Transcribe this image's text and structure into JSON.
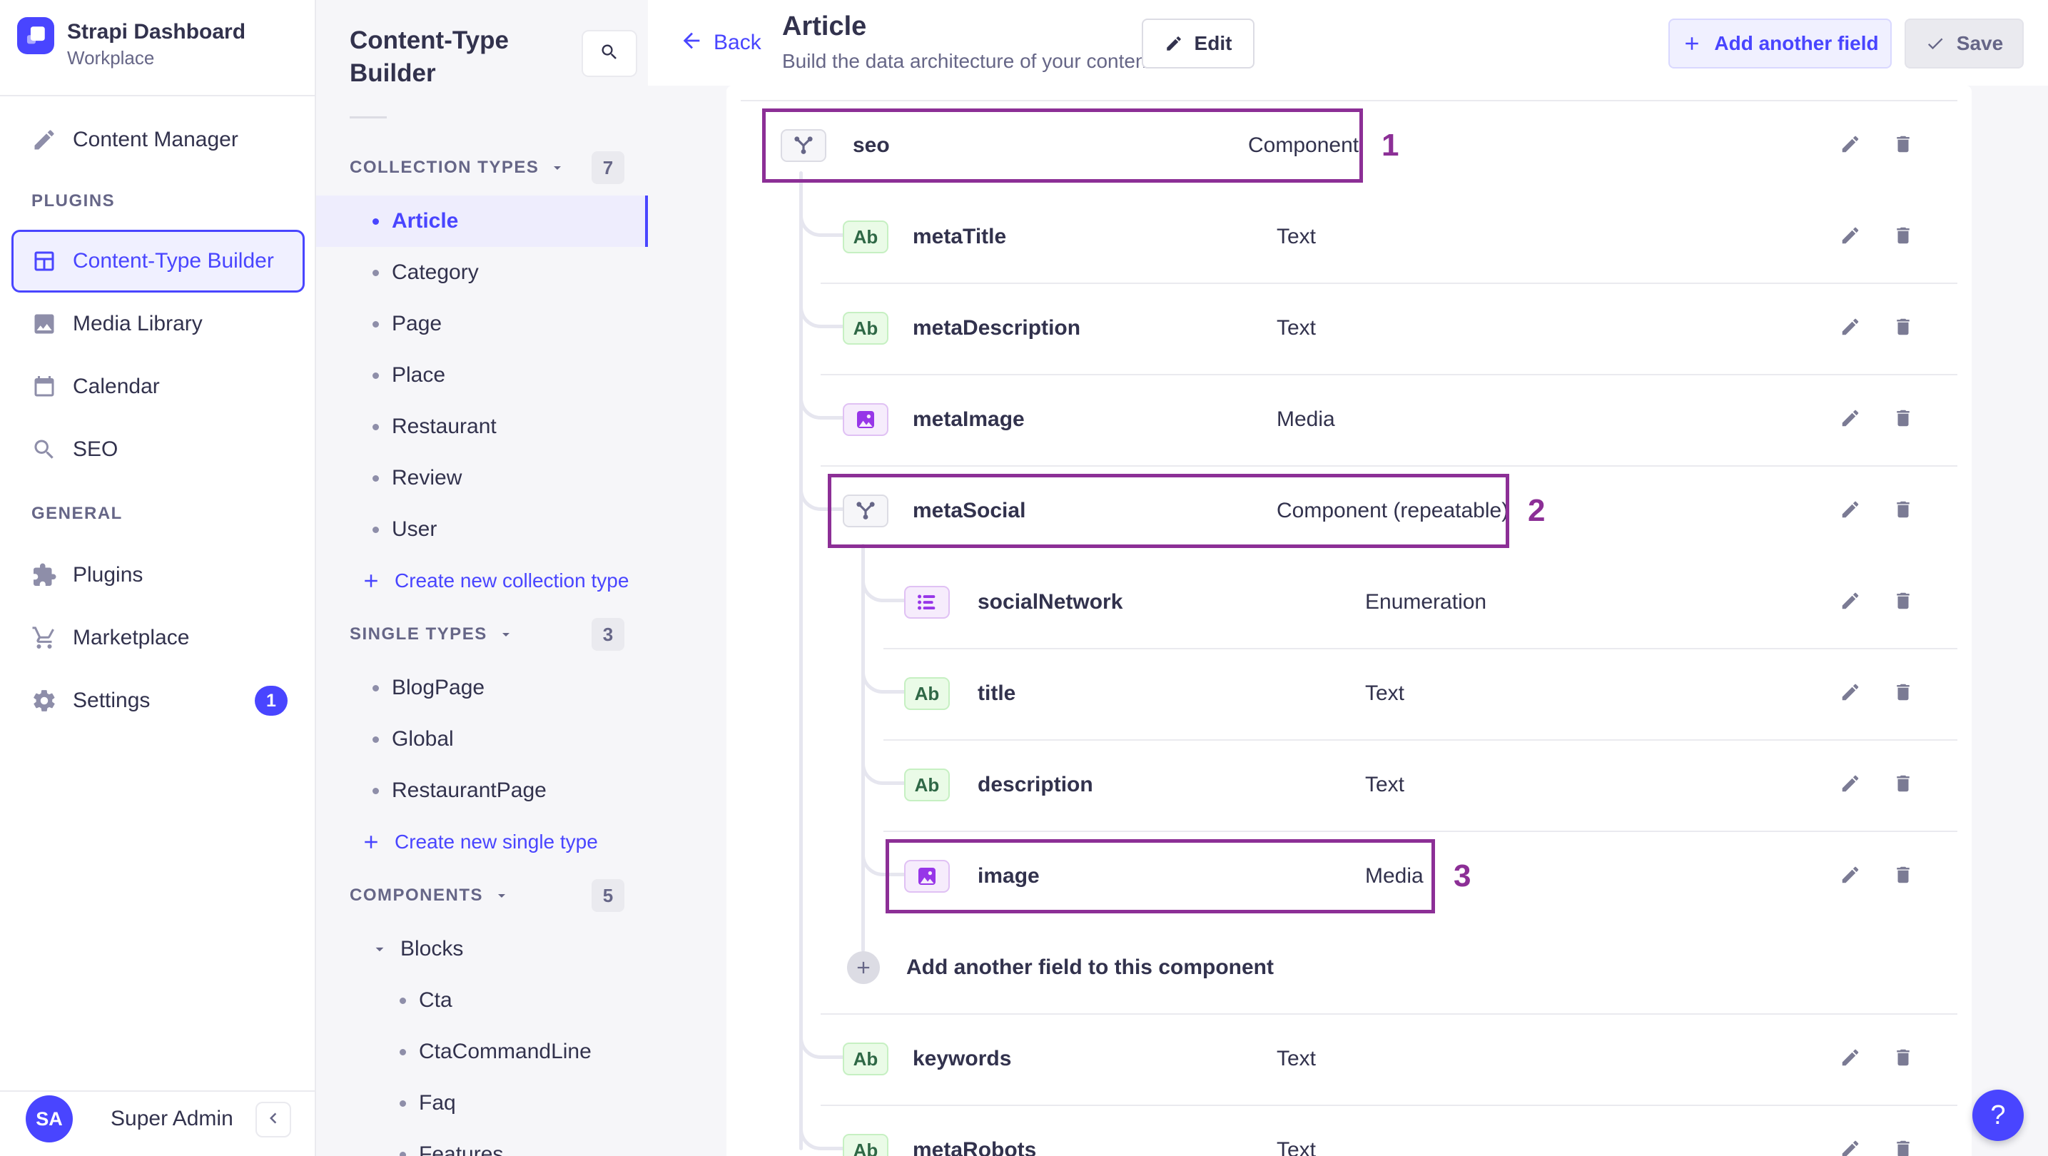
{
  "colors": {
    "primary": "#4945ff",
    "annotation": "#8c2f96"
  },
  "branding": {
    "app_title": "Strapi Dashboard",
    "workspace": "Workplace",
    "logo_icon": "strapi-logo-icon"
  },
  "sidebar1": {
    "top_items": [
      {
        "label": "Content Manager",
        "icon": "pen-icon"
      }
    ],
    "sections": [
      {
        "title": "PLUGINS",
        "items": [
          {
            "label": "Content-Type Builder",
            "icon": "layout-icon",
            "active": true
          },
          {
            "label": "Media Library",
            "icon": "image-icon"
          },
          {
            "label": "Calendar",
            "icon": "calendar-icon"
          },
          {
            "label": "SEO",
            "icon": "search-icon"
          }
        ]
      },
      {
        "title": "GENERAL",
        "items": [
          {
            "label": "Plugins",
            "icon": "puzzle-icon"
          },
          {
            "label": "Marketplace",
            "icon": "cart-icon"
          },
          {
            "label": "Settings",
            "icon": "gear-icon",
            "badge": "1"
          }
        ]
      }
    ],
    "user": {
      "initials": "SA",
      "name": "Super Admin",
      "collapse_icon": "chevron-left-icon"
    }
  },
  "sidebar2": {
    "title": "Content-Type Builder",
    "search_icon": "search-icon",
    "sections": [
      {
        "title": "COLLECTION TYPES",
        "count": "7",
        "items": [
          {
            "label": "Article",
            "active": true
          },
          {
            "label": "Category"
          },
          {
            "label": "Page"
          },
          {
            "label": "Place"
          },
          {
            "label": "Restaurant"
          },
          {
            "label": "Review"
          },
          {
            "label": "User"
          }
        ],
        "action": "Create new collection type"
      },
      {
        "title": "SINGLE TYPES",
        "count": "3",
        "items": [
          {
            "label": "BlogPage"
          },
          {
            "label": "Global"
          },
          {
            "label": "RestaurantPage"
          }
        ],
        "action": "Create new single type"
      },
      {
        "title": "COMPONENTS",
        "count": "5",
        "groups": [
          {
            "label": "Blocks",
            "items": [
              "Cta",
              "CtaCommandLine",
              "Faq",
              "Features"
            ]
          }
        ]
      }
    ]
  },
  "header": {
    "back_label": "Back",
    "title": "Article",
    "subtitle": "Build the data architecture of your content",
    "edit_label": "Edit",
    "add_field_label": "Add another field",
    "save_label": "Save"
  },
  "table": {
    "rows": [
      {
        "name": "seo",
        "type": "Component",
        "icon": "component-icon",
        "indent": 0,
        "sep": true,
        "annotation": "1"
      },
      {
        "name": "metaTitle",
        "type": "Text",
        "icon": "text-field-icon",
        "indent": 1,
        "sep": false
      },
      {
        "name": "metaDescription",
        "type": "Text",
        "icon": "text-field-icon",
        "indent": 1,
        "sep": true
      },
      {
        "name": "metaImage",
        "type": "Media",
        "icon": "media-field-icon",
        "indent": 1,
        "sep": true
      },
      {
        "name": "metaSocial",
        "type": "Component (repeatable)",
        "icon": "component-icon",
        "indent": 1,
        "sep": true,
        "annotation": "2"
      },
      {
        "name": "socialNetwork",
        "type": "Enumeration",
        "icon": "enum-field-icon",
        "indent": 2,
        "sep": false
      },
      {
        "name": "title",
        "type": "Text",
        "icon": "text-field-icon",
        "indent": 2,
        "sep": true
      },
      {
        "name": "description",
        "type": "Text",
        "icon": "text-field-icon",
        "indent": 2,
        "sep": true
      },
      {
        "name": "image",
        "type": "Media",
        "icon": "media-field-icon",
        "indent": 2,
        "sep": true,
        "annotation": "3"
      },
      {
        "add_row": true,
        "label": "Add another field to this component",
        "icon": "plus-icon",
        "indent": 1,
        "sep": false
      },
      {
        "name": "keywords",
        "type": "Text",
        "icon": "text-field-icon",
        "indent": 1,
        "sep": true
      },
      {
        "name": "metaRobots",
        "type": "Text",
        "icon": "text-field-icon",
        "indent": 1,
        "sep": true
      }
    ],
    "row_action_icons": [
      "edit-pencil-icon",
      "trash-icon"
    ]
  },
  "help_button": {
    "label": "?"
  }
}
